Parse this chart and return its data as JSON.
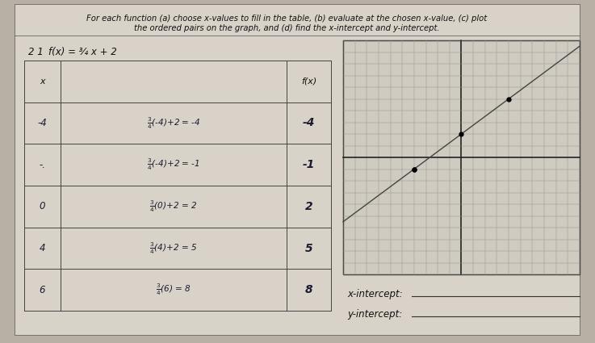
{
  "title_line1": "For each function (a) choose x-values to fill in the table, (b) evaluate at the chosen x-value, (c) plot",
  "title_line2": "the ordered pairs on the graph, and (d) find the x-intercept and y-intercept.",
  "problem_label": "2 1  f(x) = ¾ x + 2",
  "bg_color": "#b8b0a4",
  "paper_color": "#cec8be",
  "table_bg": "#c8c2b8",
  "graph_bg": "#cec8be",
  "grid_color": "#8a8480",
  "axis_color": "#222222",
  "text_color": "#111111",
  "handwrite_color": "#1a1a2e",
  "x_intercept_label": "x-intercept:",
  "y_intercept_label": "y-intercept:",
  "slope": 0.75,
  "intercept": 2,
  "graph_xlim": [
    -10,
    10
  ],
  "graph_ylim": [
    -10,
    10
  ],
  "plot_points_x": [
    -4,
    -4,
    0,
    4
  ],
  "plot_points_y": [
    -1,
    -1,
    2,
    5
  ]
}
